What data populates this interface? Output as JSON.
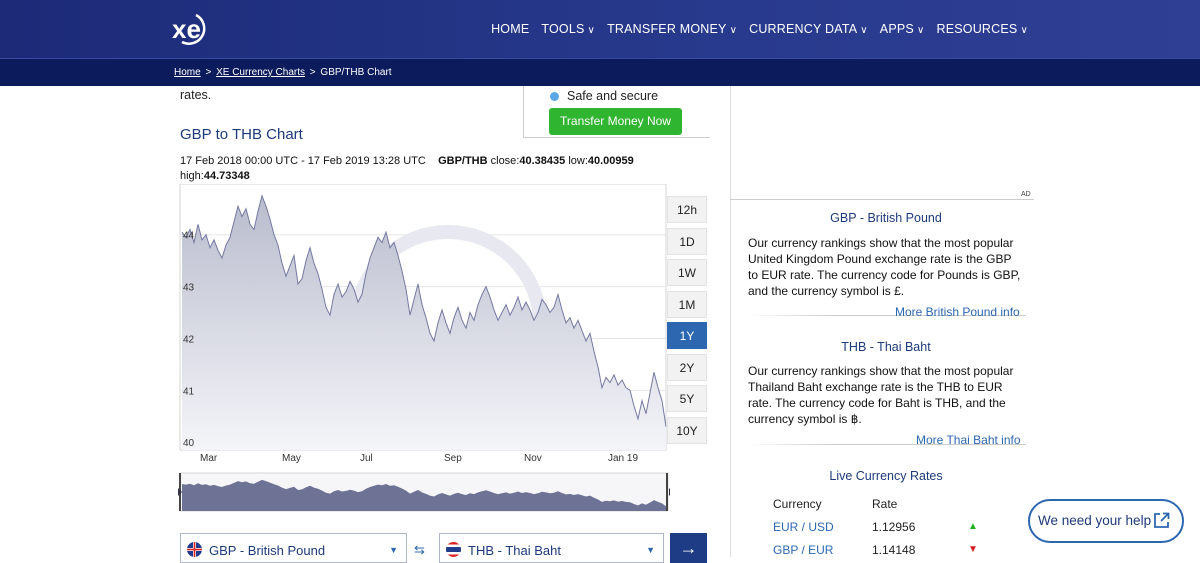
{
  "nav": {
    "items": [
      {
        "label": "HOME",
        "has_caret": false
      },
      {
        "label": "TOOLS",
        "has_caret": true
      },
      {
        "label": "TRANSFER MONEY",
        "has_caret": true
      },
      {
        "label": "CURRENCY DATA",
        "has_caret": true
      },
      {
        "label": "APPS",
        "has_caret": true
      },
      {
        "label": "RESOURCES",
        "has_caret": true
      }
    ],
    "caret": "∨"
  },
  "breadcrumb": {
    "home": "Home",
    "charts": "XE Currency Charts",
    "current": "GBP/THB Chart",
    "sep": ">"
  },
  "left": {
    "rates_fragment": "rates.",
    "promo_bullet": "Safe and secure",
    "promo_button": "Transfer Money Now",
    "chart_title": "GBP to THB Chart",
    "meta_range": "17 Feb 2018 00:00 UTC - 17 Feb 2019 13:28 UTC",
    "meta_pair": "GBP/THB",
    "meta_close_label": "close:",
    "meta_close": "40.38435",
    "meta_low_label": "low:",
    "meta_low": "40.00959",
    "meta_high_label": "high:",
    "meta_high": "44.73348"
  },
  "chart_data": {
    "type": "area",
    "y_ticks": [
      "44",
      "43",
      "42",
      "41",
      "40"
    ],
    "x_ticks": [
      "Mar",
      "May",
      "Jul",
      "Sep",
      "Nov",
      "Jan 19"
    ],
    "ylim": [
      39.85,
      44.9
    ],
    "x": [
      0,
      4,
      8,
      12,
      16,
      20,
      24,
      28,
      32,
      36,
      40,
      44,
      48,
      52,
      56,
      60,
      64,
      68,
      72,
      76,
      80,
      84,
      88,
      92,
      96,
      100,
      104,
      108,
      112,
      116,
      120,
      124,
      128,
      132,
      136,
      140,
      144,
      148,
      152,
      156,
      160,
      164,
      168,
      172,
      176,
      180,
      184,
      188,
      192,
      196,
      200,
      204,
      208,
      212,
      216,
      220,
      224,
      228,
      232,
      236,
      240,
      244,
      248,
      252,
      256,
      260,
      264,
      268,
      272,
      276,
      280,
      284,
      288,
      292,
      296,
      300,
      304,
      308,
      312,
      316,
      320,
      324,
      328,
      332,
      336,
      340,
      344,
      348,
      352,
      356,
      360,
      364,
      368,
      372,
      376,
      380,
      384,
      388,
      392,
      396,
      400,
      404,
      408,
      412,
      416,
      420,
      424,
      428,
      432,
      436,
      440,
      444,
      448,
      452,
      456,
      460,
      464,
      468,
      472,
      476,
      480,
      484
    ],
    "values": [
      44.05,
      43.95,
      44.1,
      43.85,
      44.2,
      43.9,
      44.0,
      43.75,
      43.9,
      43.7,
      43.55,
      43.8,
      43.95,
      44.25,
      44.55,
      44.35,
      44.5,
      44.2,
      44.1,
      44.45,
      44.75,
      44.55,
      44.3,
      44.0,
      43.8,
      43.45,
      43.2,
      43.4,
      43.6,
      43.05,
      43.15,
      43.5,
      43.75,
      43.45,
      43.25,
      42.95,
      42.6,
      42.45,
      42.85,
      43.05,
      42.8,
      42.9,
      43.1,
      42.95,
      42.7,
      42.85,
      43.25,
      43.55,
      43.75,
      43.95,
      43.85,
      44.05,
      43.75,
      43.85,
      43.6,
      43.3,
      42.95,
      42.45,
      42.75,
      43.05,
      42.65,
      42.4,
      42.1,
      41.95,
      42.3,
      42.55,
      42.3,
      42.1,
      42.4,
      42.6,
      42.35,
      42.2,
      42.5,
      42.35,
      42.65,
      42.85,
      43.0,
      42.8,
      42.55,
      42.35,
      42.5,
      42.65,
      42.45,
      42.6,
      42.8,
      42.55,
      42.7,
      42.55,
      42.35,
      42.5,
      42.75,
      42.65,
      42.5,
      42.6,
      42.85,
      42.55,
      42.3,
      42.4,
      42.2,
      42.35,
      42.15,
      41.95,
      42.1,
      41.75,
      41.45,
      41.05,
      41.25,
      41.15,
      41.3,
      41.1,
      41.2,
      41.05,
      41.0,
      40.7,
      40.45,
      40.8,
      40.55,
      40.95,
      41.35,
      41.05,
      40.8,
      40.3
    ]
  },
  "ranges": [
    {
      "label": "12h",
      "active": false
    },
    {
      "label": "1D",
      "active": false
    },
    {
      "label": "1W",
      "active": false
    },
    {
      "label": "1M",
      "active": false
    },
    {
      "label": "1Y",
      "active": true
    },
    {
      "label": "2Y",
      "active": false
    },
    {
      "label": "5Y",
      "active": false
    },
    {
      "label": "10Y",
      "active": false
    }
  ],
  "converter": {
    "from": "GBP - British Pound",
    "to": "THB - Thai Baht",
    "go": "→",
    "swap": "⇆"
  },
  "sidebar": {
    "ad": "AD",
    "gbp_title": "GBP - British Pound",
    "gbp_text": "Our currency rankings show that the most popular United Kingdom Pound exchange rate is the GBP to EUR rate. The currency code for Pounds is GBP, and the currency symbol is £.",
    "gbp_link": "More British Pound info",
    "thb_title": "THB - Thai Baht",
    "thb_text": "Our currency rankings show that the most popular Thailand Baht exchange rate is the THB to EUR rate. The currency code for Baht is THB, and the currency symbol is ฿.",
    "thb_link": "More Thai Baht info",
    "live_title": "Live Currency Rates",
    "col_currency": "Currency",
    "col_rate": "Rate",
    "rows": [
      {
        "pair": "EUR / USD",
        "rate": "1.12956",
        "trend": "up"
      },
      {
        "pair": "GBP / EUR",
        "rate": "1.14148",
        "trend": "down"
      }
    ]
  },
  "help": {
    "label": "We need your help"
  },
  "colors": {
    "accent": "#2c67b0",
    "header": "#283a8d",
    "green": "#30b530",
    "up": "#22b322",
    "down": "#d32020"
  }
}
